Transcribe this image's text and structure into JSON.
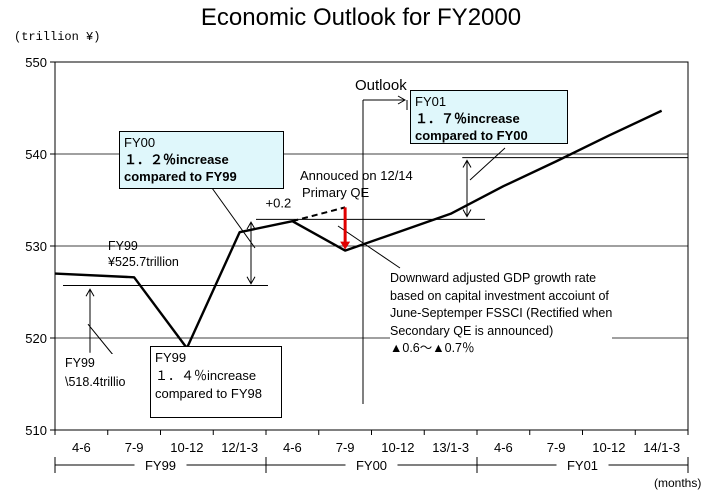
{
  "title": "Economic Outlook for FY2000",
  "unit_label": "(trillion ¥)",
  "x_unit_label": "(months)",
  "chart_data": {
    "type": "line",
    "ylim": [
      510,
      550
    ],
    "y_ticks": [
      "550",
      "540",
      "530",
      "520",
      "510"
    ],
    "x_tick_labels": [
      "4-6",
      "7-9",
      "10-12",
      "12/1-3",
      "4-6",
      "7-9",
      "10-12",
      "13/1-3",
      "4-6",
      "7-9",
      "10-12",
      "14/1-3"
    ],
    "fiscal_years": [
      "FY99",
      "FY00",
      "FY01"
    ],
    "series": [
      {
        "x": [
          "4-6",
          "7-9",
          "10-12",
          "12/1-3",
          "4-6",
          "7-9",
          "10-12",
          "13/1-3",
          "4-6",
          "7-9",
          "10-12",
          "14/1-3"
        ],
        "values": [
          527.0,
          526.6,
          518.9,
          531.5,
          532.7,
          529.5,
          531.5,
          533.5,
          536.5,
          539.2,
          542.0,
          544.7
        ]
      }
    ],
    "qe_adjustment": {
      "label": "+0.2",
      "from": 529.5,
      "to": 534.2
    },
    "annotations": {
      "outlook": "Outlook",
      "fy01_box": {
        "head": "FY01",
        "line1": "１．７％increase",
        "line2": "compared to FY00"
      },
      "fy00_box": {
        "head": "FY00",
        "line1": "１．２％increase",
        "line2": "compared to FY99"
      },
      "fy99_box": {
        "head": "FY99",
        "line1": "１．４％increase",
        "line2": "compared to FY98"
      },
      "fy99_level": {
        "line1": "FY99",
        "line2": "¥525.7trillion"
      },
      "fy99_level_low": {
        "line1": "FY99",
        "line2": "\\518.4trillio"
      },
      "primary_qe": {
        "line1": "Annouced on 12/14",
        "line2": "Primary QE"
      },
      "downward_note": [
        "Downward adjusted GDP growth rate",
        "based on capital investment accoiunt of",
        "June-Septemper FSSCI (Rectified when",
        "Secondary QE is announced)",
        "▲0.6〜▲0.7％"
      ]
    }
  }
}
